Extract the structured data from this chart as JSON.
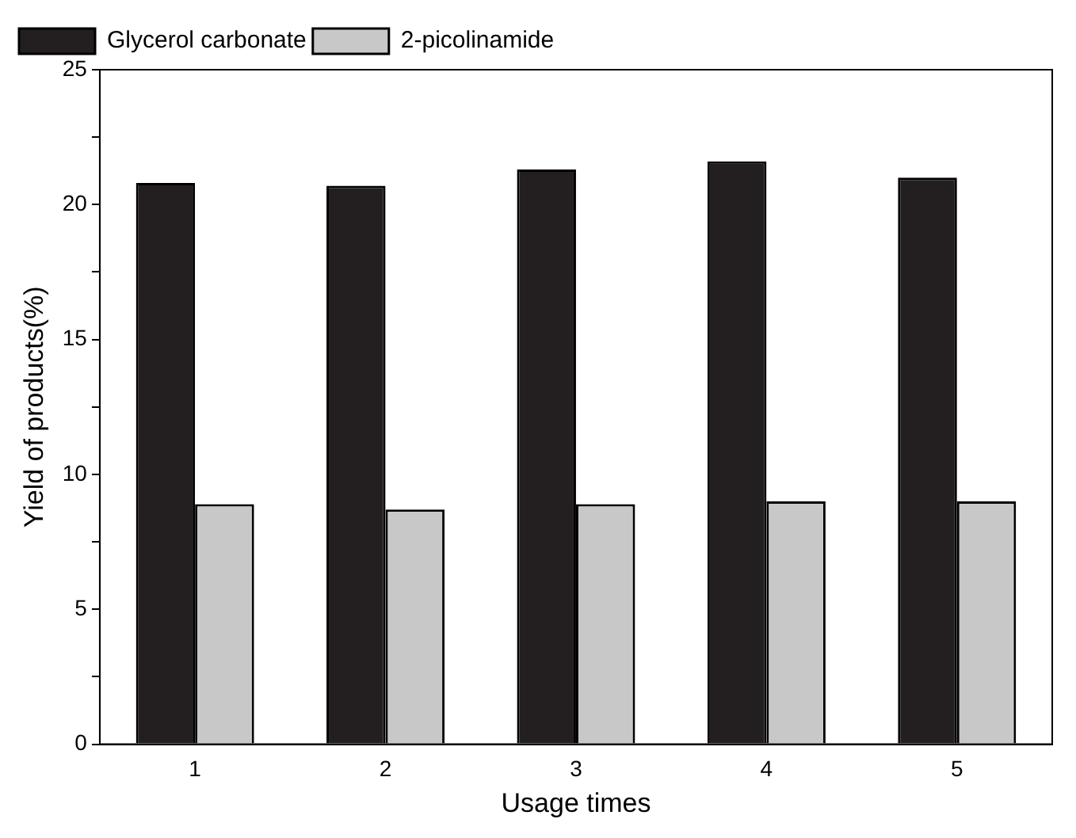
{
  "chart_data": {
    "type": "bar",
    "xlabel": "Usage times",
    "ylabel": "Yield of products(%)",
    "categories": [
      "1",
      "2",
      "3",
      "4",
      "5"
    ],
    "series": [
      {
        "name": "Glycerol carbonate",
        "color": "#231f20",
        "values": [
          20.8,
          20.7,
          21.3,
          21.6,
          21.0
        ]
      },
      {
        "name": "2-picolinamide",
        "color": "#c8c8c8",
        "values": [
          8.9,
          8.7,
          8.9,
          9.0,
          9.0
        ]
      }
    ],
    "ylim": [
      0,
      25
    ],
    "yticks": [
      0,
      {
        "value": 2.5,
        "label": null
      },
      5,
      {
        "value": 7.5,
        "label": null
      },
      10,
      {
        "value": 12.5,
        "label": null
      },
      15,
      {
        "value": 17.5,
        "label": null
      },
      20,
      {
        "value": 22.5,
        "label": null
      },
      25
    ],
    "grid": false,
    "legend": "top left"
  }
}
